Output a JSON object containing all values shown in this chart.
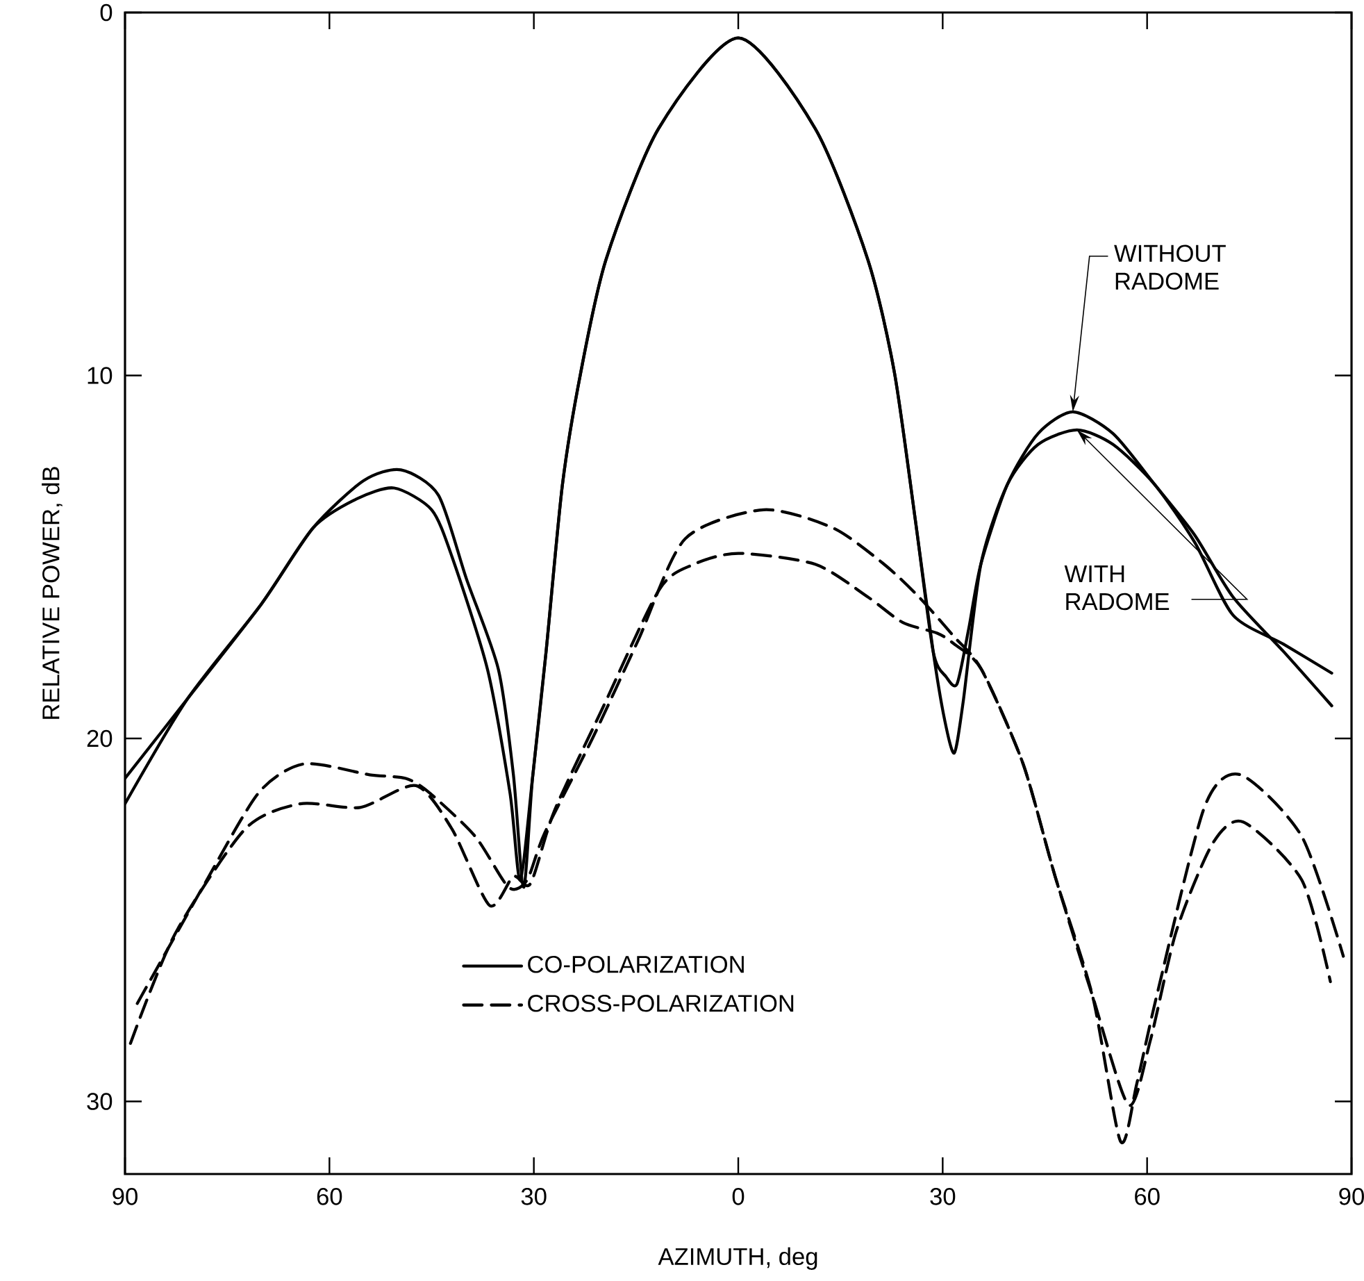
{
  "chart_data": {
    "type": "line",
    "xlabel": "AZIMUTH, deg",
    "ylabel": "RELATIVE POWER, dB",
    "xlim": [
      -90,
      90
    ],
    "ylim": [
      32,
      0
    ],
    "xticks": [
      {
        "value": -90,
        "label": "90"
      },
      {
        "value": -60,
        "label": "60"
      },
      {
        "value": -30,
        "label": "30"
      },
      0,
      {
        "value": 30,
        "label": "30"
      },
      {
        "value": 60,
        "label": "60"
      },
      {
        "value": 90,
        "label": "90"
      }
    ],
    "yticks": [
      0,
      10,
      20,
      30
    ],
    "legend": "bottom",
    "series": [
      {
        "name": "CO-POLARIZATION",
        "color": "#000000",
        "line_style": "solid",
        "x": [
          -90,
          -80.8,
          -70,
          -62.4,
          -55,
          -49.5,
          -44,
          -39.9,
          -35.2,
          -33,
          -31.5,
          -30.2,
          -28.2,
          -25.8,
          -23.1,
          -19.4,
          -11.7,
          0,
          11.3,
          19.0,
          22.9,
          26.0,
          28.6,
          30.5,
          32.1,
          33.8,
          35.6,
          39.5,
          44,
          49.1,
          55,
          61.1,
          67,
          72.6,
          80,
          87.1
        ],
        "values": [
          21.1,
          18.9,
          16.3,
          14.2,
          12.9,
          12.6,
          13.3,
          15.6,
          18.1,
          21.0,
          24.1,
          21.1,
          17.6,
          13.0,
          9.9,
          6.8,
          3.2,
          0.7,
          3.2,
          6.8,
          9.9,
          14.0,
          17.6,
          18.3,
          18.5,
          17.0,
          15.2,
          13.0,
          11.6,
          11.0,
          11.6,
          13.0,
          14.4,
          16.1,
          17.6,
          19.1
        ]
      },
      {
        "color": "#000000",
        "line_style": "solid",
        "x": [
          -90,
          -80.8,
          -70,
          -62.4,
          -56,
          -50.5,
          -45,
          -42,
          -36.8,
          -33.5,
          -32,
          -30.2,
          -28.2,
          -25.8,
          -23.1,
          -19.4,
          -11.7,
          0,
          11.3,
          19.0,
          22.9,
          26.0,
          28.6,
          30.3,
          31.7,
          33,
          35.6,
          39.5,
          44,
          49.7,
          55,
          61.1,
          67,
          72.6,
          80,
          87.1
        ],
        "values": [
          21.8,
          18.9,
          16.3,
          14.2,
          13.4,
          13.1,
          13.7,
          15.0,
          18.1,
          21.5,
          23.9,
          21.1,
          17.6,
          13.0,
          9.9,
          6.8,
          3.2,
          0.7,
          3.2,
          6.8,
          9.9,
          14.0,
          17.6,
          19.5,
          20.4,
          19.0,
          15.2,
          13.0,
          11.9,
          11.5,
          11.9,
          13.0,
          14.6,
          16.6,
          17.4,
          18.2
        ]
      },
      {
        "name": "CROSS-POLARIZATION",
        "color": "#000000",
        "line_style": "dashed",
        "x": [
          -88.2,
          -78.6,
          -70.4,
          -63.7,
          -54.1,
          -48.8,
          -45.3,
          -38.6,
          -33.7,
          -31.0,
          -28.4,
          -21.4,
          -14.7,
          -7.8,
          3.7,
          13.9,
          21.4,
          26.5,
          31.7,
          35.7,
          41.8,
          46.5,
          52.0,
          57.3,
          60.5,
          64.3,
          69.6,
          74.1,
          82.7,
          86.9
        ],
        "values": [
          27.3,
          24.1,
          21.5,
          20.7,
          21.0,
          21.1,
          21.5,
          22.7,
          24.1,
          23.9,
          22.6,
          20.0,
          17.3,
          14.5,
          13.7,
          14.2,
          15.2,
          16.1,
          17.2,
          18.1,
          20.7,
          23.8,
          27.1,
          30.1,
          28.3,
          25.3,
          22.9,
          22.3,
          23.9,
          26.7
        ]
      },
      {
        "color": "#000000",
        "line_style": "dashed",
        "x": [
          -89.2,
          -82.7,
          -72.4,
          -64.3,
          -55.5,
          -47.3,
          -42,
          -36.5,
          -33,
          -30.5,
          -27,
          -20,
          -11.6,
          -6.5,
          0,
          11.3,
          19.0,
          24.1,
          29.2,
          31.7,
          35.7,
          41.8,
          46.5,
          52.0,
          56.1,
          58.5,
          61.4,
          68.4,
          73.7,
          82.7,
          88.8
        ],
        "values": [
          28.4,
          25.4,
          22.5,
          21.8,
          21.9,
          21.3,
          22.5,
          24.6,
          23.8,
          24.0,
          22.0,
          19.2,
          15.9,
          15.2,
          14.9,
          15.2,
          16.1,
          16.8,
          17.1,
          17.4,
          18.1,
          20.7,
          23.8,
          27.1,
          31.1,
          29.5,
          27.1,
          21.9,
          21.0,
          22.7,
          26.0
        ]
      }
    ],
    "annotations": [
      {
        "text": "WITHOUT RADOME",
        "x": 49.1,
        "y": 11.0
      },
      {
        "text": "WITH RADOME",
        "x": 49.7,
        "y": 11.5
      }
    ]
  }
}
